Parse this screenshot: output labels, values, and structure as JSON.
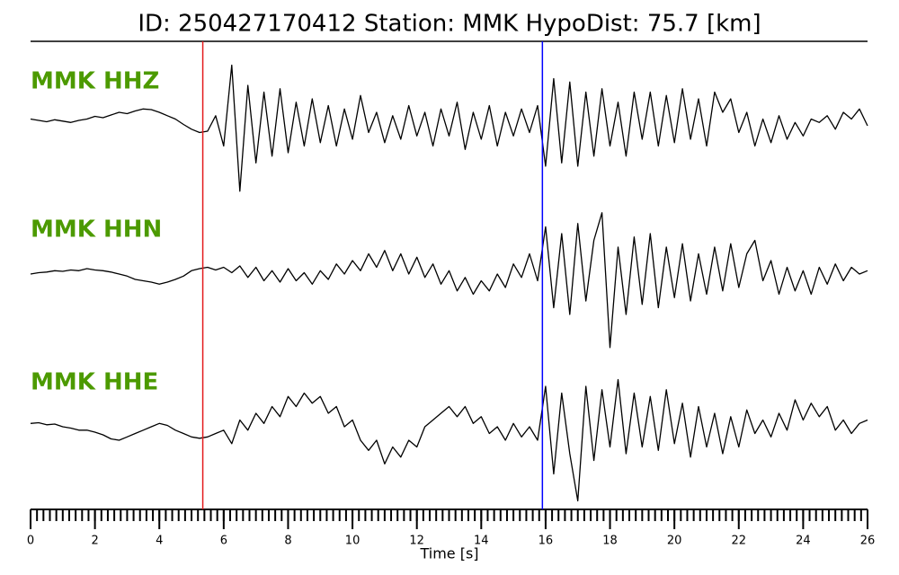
{
  "chart_data": {
    "type": "seismogram",
    "title": "ID: 250427170412   Station: MMK   HypoDist:     75.7 [km]",
    "xlabel": "Time [s]",
    "xlim": [
      0,
      26
    ],
    "xticks": [
      0,
      2,
      4,
      6,
      8,
      10,
      12,
      14,
      16,
      18,
      20,
      22,
      24,
      26
    ],
    "minor_tick_interval": 0.2,
    "ylim": [
      -1.2,
      1.2
    ],
    "label_color": "#4c9a00",
    "picks": [
      {
        "time": 5.35,
        "color": "#e41a1c"
      },
      {
        "time": 15.9,
        "color": "#0000ff"
      }
    ],
    "x": [
      0,
      0.25,
      0.5,
      0.75,
      1,
      1.25,
      1.5,
      1.75,
      2,
      2.25,
      2.5,
      2.75,
      3,
      3.25,
      3.5,
      3.75,
      4,
      4.25,
      4.5,
      4.75,
      5,
      5.25,
      5.5,
      5.75,
      6,
      6.25,
      6.5,
      6.75,
      7,
      7.25,
      7.5,
      7.75,
      8,
      8.25,
      8.5,
      8.75,
      9,
      9.25,
      9.5,
      9.75,
      10,
      10.25,
      10.5,
      10.75,
      11,
      11.25,
      11.5,
      11.75,
      12,
      12.25,
      12.5,
      12.75,
      13,
      13.25,
      13.5,
      13.75,
      14,
      14.25,
      14.5,
      14.75,
      15,
      15.25,
      15.5,
      15.75,
      16,
      16.25,
      16.5,
      16.75,
      17,
      17.25,
      17.5,
      17.75,
      18,
      18.25,
      18.5,
      18.75,
      19,
      19.25,
      19.5,
      19.75,
      20,
      20.25,
      20.5,
      20.75,
      21,
      21.25,
      21.5,
      21.75,
      22,
      22.25,
      22.5,
      22.75,
      23,
      23.25,
      23.5,
      23.75,
      24,
      24.25,
      24.5,
      24.75,
      25,
      25.25,
      25.5,
      25.75,
      26
    ],
    "series": [
      {
        "name": "MMK HHZ",
        "color": "#000000",
        "values": [
          0.1,
          0.08,
          0.06,
          0.09,
          0.07,
          0.05,
          0.08,
          0.1,
          0.14,
          0.12,
          0.16,
          0.2,
          0.18,
          0.22,
          0.25,
          0.24,
          0.2,
          0.15,
          0.1,
          0.02,
          -0.05,
          -0.1,
          -0.08,
          0.15,
          -0.3,
          0.9,
          -0.97,
          0.6,
          -0.55,
          0.5,
          -0.45,
          0.55,
          -0.4,
          0.35,
          -0.3,
          0.4,
          -0.25,
          0.3,
          -0.3,
          0.25,
          -0.2,
          0.45,
          -0.1,
          0.2,
          -0.25,
          0.15,
          -0.2,
          0.3,
          -0.15,
          0.2,
          -0.3,
          0.25,
          -0.15,
          0.35,
          -0.35,
          0.2,
          -0.2,
          0.3,
          -0.3,
          0.2,
          -0.15,
          0.25,
          -0.1,
          0.3,
          -0.6,
          0.7,
          -0.55,
          0.65,
          -0.6,
          0.5,
          -0.45,
          0.55,
          -0.3,
          0.35,
          -0.45,
          0.5,
          -0.2,
          0.5,
          -0.3,
          0.45,
          -0.25,
          0.55,
          -0.2,
          0.4,
          -0.3,
          0.5,
          0.2,
          0.4,
          -0.1,
          0.2,
          -0.3,
          0.1,
          -0.25,
          0.15,
          -0.2,
          0.05,
          -0.15,
          0.1,
          0.05,
          0.15,
          -0.05,
          0.2,
          0.1,
          0.25,
          0.0
        ]
      },
      {
        "name": "MMK HHN",
        "color": "#000000",
        "values": [
          0.0,
          0.02,
          0.03,
          0.05,
          0.04,
          0.06,
          0.05,
          0.08,
          0.06,
          0.05,
          0.03,
          0.0,
          -0.03,
          -0.08,
          -0.1,
          -0.12,
          -0.15,
          -0.12,
          -0.08,
          -0.03,
          0.05,
          0.08,
          0.1,
          0.06,
          0.1,
          0.02,
          0.12,
          -0.05,
          0.1,
          -0.1,
          0.05,
          -0.12,
          0.08,
          -0.1,
          0.02,
          -0.15,
          0.05,
          -0.08,
          0.15,
          0.0,
          0.2,
          0.05,
          0.3,
          0.1,
          0.35,
          0.05,
          0.3,
          0.0,
          0.25,
          -0.05,
          0.15,
          -0.15,
          0.05,
          -0.25,
          -0.05,
          -0.3,
          -0.1,
          -0.25,
          0.0,
          -0.2,
          0.15,
          -0.05,
          0.3,
          -0.1,
          0.7,
          -0.5,
          0.6,
          -0.6,
          0.75,
          -0.4,
          0.5,
          0.91,
          -1.09,
          0.4,
          -0.6,
          0.55,
          -0.45,
          0.6,
          -0.5,
          0.4,
          -0.35,
          0.45,
          -0.4,
          0.3,
          -0.3,
          0.4,
          -0.25,
          0.45,
          -0.2,
          0.3,
          0.5,
          -0.1,
          0.2,
          -0.3,
          0.1,
          -0.25,
          0.05,
          -0.3,
          0.1,
          -0.15,
          0.15,
          -0.1,
          0.1,
          0.0,
          0.05
        ]
      },
      {
        "name": "MMK HHE",
        "color": "#000000",
        "values": [
          0.05,
          0.06,
          0.03,
          0.04,
          0.0,
          -0.02,
          -0.05,
          -0.05,
          -0.08,
          -0.12,
          -0.18,
          -0.2,
          -0.15,
          -0.1,
          -0.05,
          0.0,
          0.05,
          0.02,
          -0.05,
          -0.1,
          -0.15,
          -0.17,
          -0.15,
          -0.1,
          -0.05,
          -0.25,
          0.1,
          -0.05,
          0.2,
          0.05,
          0.3,
          0.15,
          0.45,
          0.3,
          0.5,
          0.35,
          0.45,
          0.2,
          0.3,
          0.0,
          0.1,
          -0.2,
          -0.35,
          -0.2,
          -0.55,
          -0.3,
          -0.45,
          -0.2,
          -0.3,
          0.0,
          0.1,
          0.2,
          0.3,
          0.15,
          0.3,
          0.05,
          0.15,
          -0.1,
          0.0,
          -0.2,
          0.05,
          -0.15,
          0.0,
          -0.2,
          0.6,
          -0.7,
          0.5,
          -0.4,
          -1.1,
          0.6,
          -0.5,
          0.55,
          -0.3,
          0.7,
          -0.4,
          0.5,
          -0.3,
          0.45,
          -0.35,
          0.55,
          -0.25,
          0.35,
          -0.45,
          0.3,
          -0.3,
          0.2,
          -0.4,
          0.15,
          -0.3,
          0.25,
          -0.1,
          0.1,
          -0.15,
          0.2,
          -0.05,
          0.4,
          0.1,
          0.35,
          0.15,
          0.3,
          -0.05,
          0.1,
          -0.1,
          0.05,
          0.1
        ]
      }
    ]
  }
}
